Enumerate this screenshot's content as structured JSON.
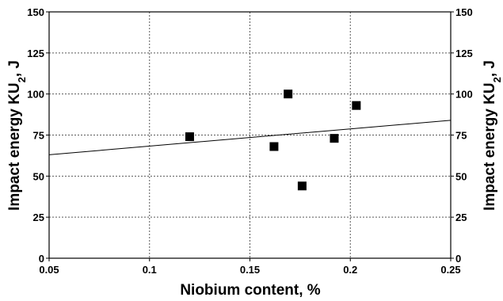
{
  "chart_data": {
    "type": "scatter",
    "xlabel": "Niobium content, %",
    "ylabel_left": "Impact energy KU",
    "ylabel_right": "Impact energy KU",
    "ylabel_subscript": "2",
    "ylabel_suffix": ", J",
    "xlim": [
      0.05,
      0.25
    ],
    "ylim": [
      0,
      150
    ],
    "x_ticks": [
      "0.05",
      "0.1",
      "0.15",
      "0.2",
      "0.25"
    ],
    "x_tick_values": [
      0.05,
      0.1,
      0.15,
      0.2,
      0.25
    ],
    "y_ticks": [
      "0",
      "25",
      "50",
      "75",
      "100",
      "125",
      "150"
    ],
    "y_tick_values": [
      0,
      25,
      50,
      75,
      100,
      125,
      150
    ],
    "grid": true,
    "points": [
      {
        "x": 0.12,
        "y": 74
      },
      {
        "x": 0.162,
        "y": 68
      },
      {
        "x": 0.169,
        "y": 100
      },
      {
        "x": 0.176,
        "y": 44
      },
      {
        "x": 0.192,
        "y": 73
      },
      {
        "x": 0.203,
        "y": 93
      }
    ],
    "trendline": {
      "x": [
        0.05,
        0.25
      ],
      "y": [
        63,
        84
      ]
    }
  }
}
